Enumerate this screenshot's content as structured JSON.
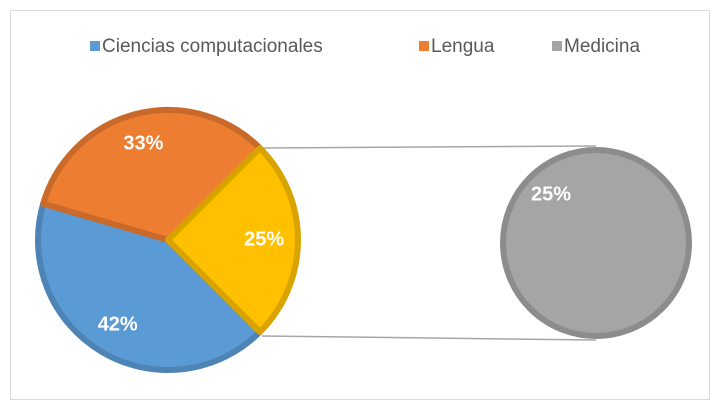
{
  "chart_data": {
    "type": "pie-of-pie",
    "categories": [
      "Ciencias computacionales",
      "Lengua",
      "Medicina"
    ],
    "values": [
      42,
      33,
      25
    ],
    "value_labels": [
      "42%",
      "33%",
      "25%"
    ],
    "colors": [
      "#5b9bd5",
      "#ed7d31",
      "#a5a5a5"
    ],
    "other": {
      "value": 25,
      "value_label": "25%",
      "color": "#ffc000"
    },
    "legend": "top"
  }
}
